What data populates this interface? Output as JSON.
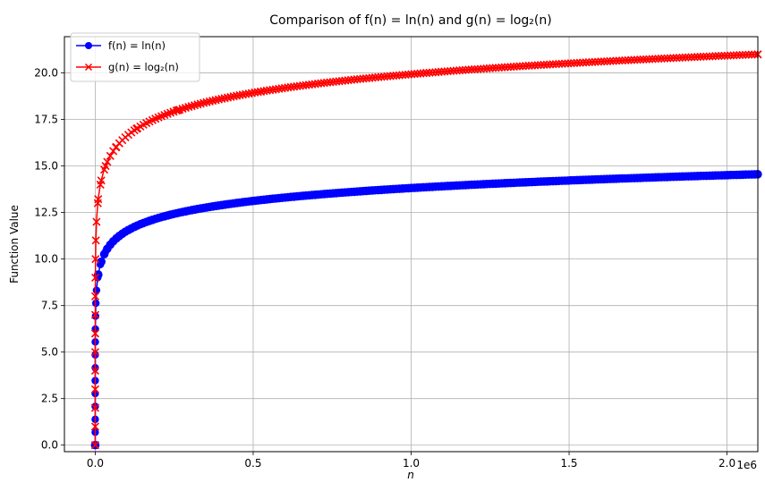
{
  "chart_data": {
    "type": "line",
    "title": "Comparison of f(n) = ln(n) and g(n) = log₂(n)",
    "xlabel": "n",
    "ylabel": "Function Value",
    "x_offset_text": "1e6",
    "x_scale": 1000000,
    "xlim": [
      -0.0975,
      2.0975
    ],
    "ylim": [
      -0.35,
      21.95
    ],
    "xticks": [
      0.0,
      0.5,
      1.0,
      1.5,
      2.0
    ],
    "xtick_labels": [
      "0.0",
      "0.5",
      "1.0",
      "1.5",
      "2.0"
    ],
    "yticks": [
      0.0,
      2.5,
      5.0,
      7.5,
      10.0,
      12.5,
      15.0,
      17.5,
      20.0
    ],
    "ytick_labels": [
      "0.0",
      "2.5",
      "5.0",
      "7.5",
      "10.0",
      "12.5",
      "15.0",
      "17.5",
      "20.0"
    ],
    "grid": true,
    "legend_position": "top-left",
    "x_range": [
      1,
      2097152
    ],
    "series": [
      {
        "name": "f(n) = ln(n)",
        "function": "ln",
        "color": "#0000ff",
        "marker": "circle"
      },
      {
        "name": "g(n) = log₂(n)",
        "function": "log2",
        "color": "#ff0000",
        "marker": "x"
      }
    ]
  }
}
